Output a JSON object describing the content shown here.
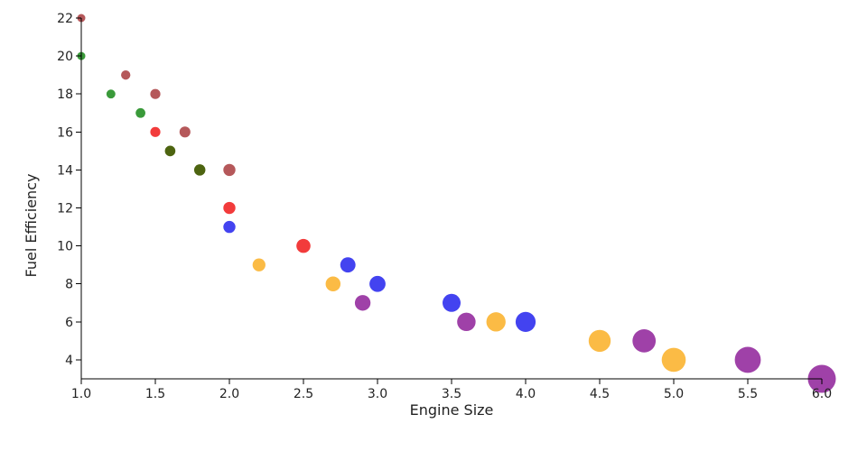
{
  "chart_data": {
    "type": "scatter",
    "title": "",
    "xlabel": "Engine Size",
    "ylabel": "Fuel Efficiency",
    "xlim": [
      1.0,
      6.0
    ],
    "ylim": [
      3,
      22
    ],
    "x_ticks": [
      "1.0",
      "1.5",
      "2.0",
      "2.5",
      "3.0",
      "3.5",
      "4.0",
      "4.5",
      "5.0",
      "5.5",
      "6.0"
    ],
    "y_ticks": [
      "4",
      "6",
      "8",
      "10",
      "12",
      "14",
      "16",
      "18",
      "20",
      "22"
    ],
    "x_tick_values": [
      1.0,
      1.5,
      2.0,
      2.5,
      3.0,
      3.5,
      4.0,
      4.5,
      5.0,
      5.5,
      6.0
    ],
    "y_tick_values": [
      4,
      6,
      8,
      10,
      12,
      14,
      16,
      18,
      20,
      22
    ],
    "grid": false,
    "legend": "none",
    "size_encodes": "engine size",
    "colors": {
      "brown": "#b5585a",
      "green": "#3a9a3a",
      "red": "#f23b3b",
      "olive": "#4d6410",
      "blue": "#4343f0",
      "orange": "#fbbb45",
      "purple": "#9f41a8"
    },
    "points": [
      {
        "x": 1.0,
        "y": 22,
        "color": "brown"
      },
      {
        "x": 1.0,
        "y": 20,
        "color": "green"
      },
      {
        "x": 1.2,
        "y": 18,
        "color": "green"
      },
      {
        "x": 1.3,
        "y": 19,
        "color": "brown"
      },
      {
        "x": 1.4,
        "y": 17,
        "color": "green"
      },
      {
        "x": 1.5,
        "y": 18,
        "color": "brown"
      },
      {
        "x": 1.5,
        "y": 16,
        "color": "red"
      },
      {
        "x": 1.6,
        "y": 15,
        "color": "olive"
      },
      {
        "x": 1.7,
        "y": 16,
        "color": "brown"
      },
      {
        "x": 1.8,
        "y": 14,
        "color": "olive"
      },
      {
        "x": 2.0,
        "y": 14,
        "color": "brown"
      },
      {
        "x": 2.0,
        "y": 12,
        "color": "red"
      },
      {
        "x": 2.0,
        "y": 11,
        "color": "blue"
      },
      {
        "x": 2.2,
        "y": 9,
        "color": "orange"
      },
      {
        "x": 2.5,
        "y": 10,
        "color": "red"
      },
      {
        "x": 2.7,
        "y": 8,
        "color": "orange"
      },
      {
        "x": 2.8,
        "y": 9,
        "color": "blue"
      },
      {
        "x": 2.9,
        "y": 7,
        "color": "purple"
      },
      {
        "x": 3.0,
        "y": 8,
        "color": "blue"
      },
      {
        "x": 3.5,
        "y": 7,
        "color": "blue"
      },
      {
        "x": 3.6,
        "y": 6,
        "color": "purple"
      },
      {
        "x": 3.8,
        "y": 6,
        "color": "orange"
      },
      {
        "x": 4.0,
        "y": 6,
        "color": "blue"
      },
      {
        "x": 4.5,
        "y": 5,
        "color": "orange"
      },
      {
        "x": 4.8,
        "y": 5,
        "color": "purple"
      },
      {
        "x": 5.0,
        "y": 4,
        "color": "orange"
      },
      {
        "x": 5.5,
        "y": 4,
        "color": "purple"
      },
      {
        "x": 6.0,
        "y": 3,
        "color": "purple"
      }
    ]
  }
}
